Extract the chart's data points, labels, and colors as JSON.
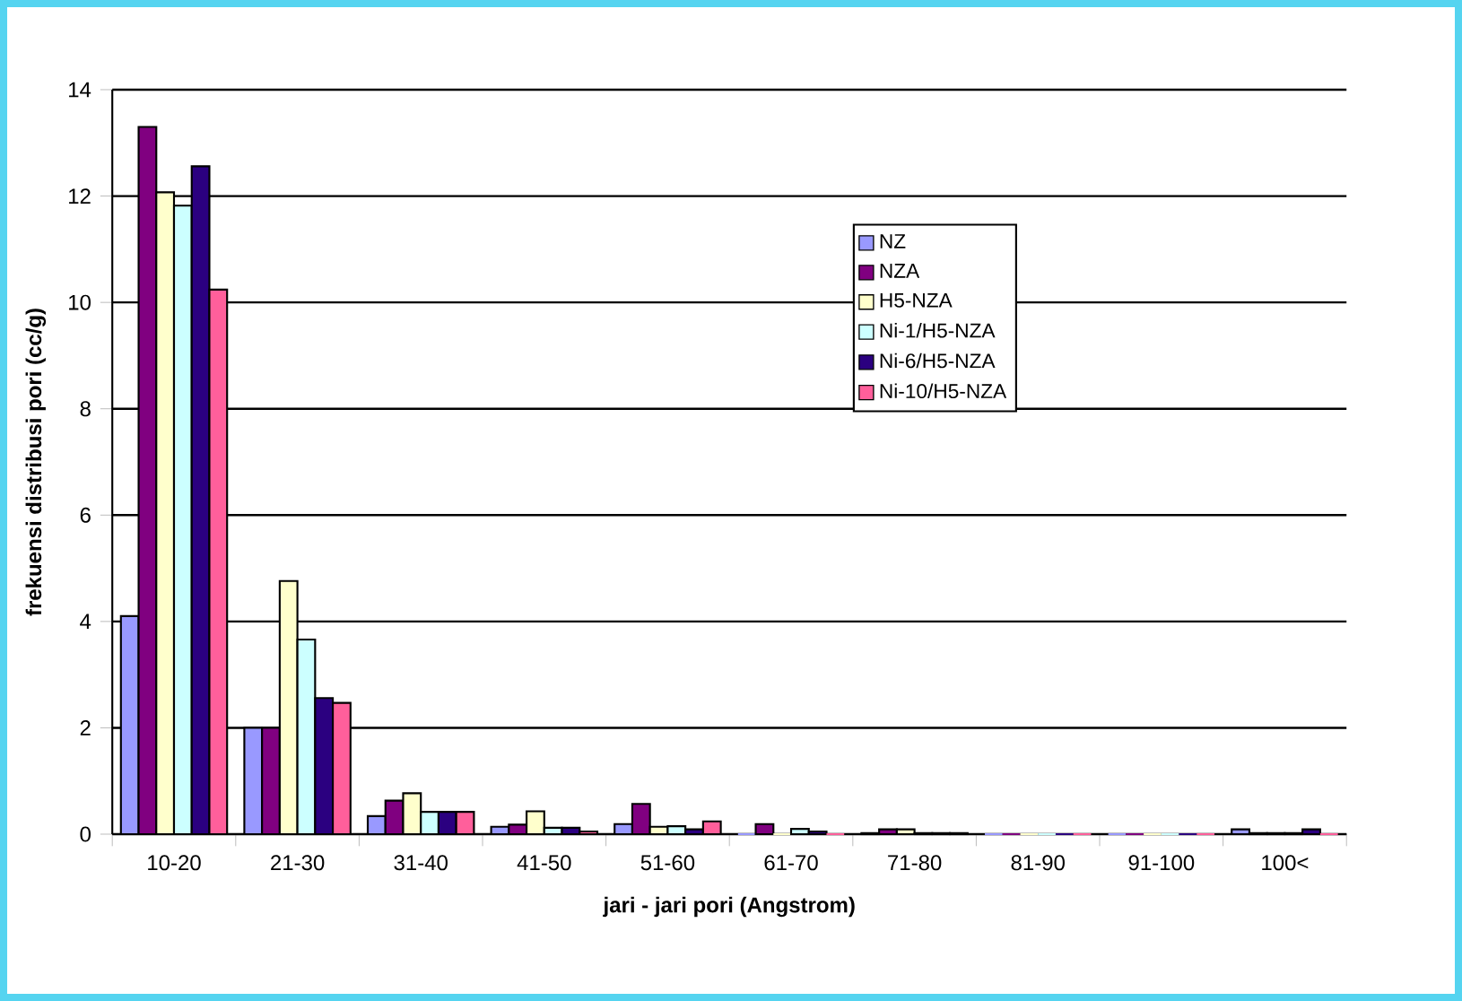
{
  "chart_data": {
    "type": "bar",
    "xlabel": "jari - jari pori (Angstrom)",
    "ylabel": "frekuensi distribusi pori (cc/g)",
    "categories": [
      "10-20",
      "21-30",
      "31-40",
      "41-50",
      "51-60",
      "61-70",
      "71-80",
      "81-90",
      "91-100",
      "100<"
    ],
    "series": [
      {
        "name": "NZ",
        "color": "#9999ff",
        "values": [
          4.1,
          2.0,
          0.34,
          0.14,
          0.19,
          0,
          0.02,
          0,
          0,
          0.09
        ]
      },
      {
        "name": "NZA",
        "color": "#800080",
        "values": [
          13.3,
          2.0,
          0.63,
          0.18,
          0.57,
          0.19,
          0.09,
          0,
          0,
          0.02
        ]
      },
      {
        "name": "H5-NZA",
        "color": "#ffffcc",
        "values": [
          12.07,
          4.76,
          0.77,
          0.43,
          0.14,
          0,
          0.09,
          0,
          0,
          0.02
        ]
      },
      {
        "name": "Ni-1/H5-NZA",
        "color": "#ccffff",
        "values": [
          11.82,
          3.66,
          0.42,
          0.12,
          0.15,
          0.1,
          0.02,
          0,
          0,
          0.02
        ]
      },
      {
        "name": "Ni-6/H5-NZA",
        "color": "#2b0080",
        "values": [
          12.56,
          2.56,
          0.42,
          0.12,
          0.09,
          0.05,
          0.02,
          0,
          0,
          0.09
        ]
      },
      {
        "name": "Ni-10/H5-NZA",
        "color": "#ff5f9b",
        "values": [
          10.24,
          2.47,
          0.42,
          0.05,
          0.24,
          0,
          0.02,
          0,
          0,
          0
        ]
      }
    ],
    "ylim": [
      0,
      14
    ],
    "yticks": [
      0,
      2,
      4,
      6,
      8,
      10,
      12,
      14
    ],
    "grid": "y",
    "legend": "top right"
  }
}
